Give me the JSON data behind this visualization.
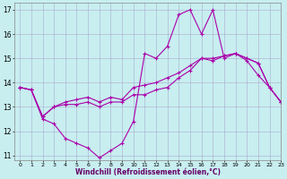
{
  "xlabel": "Windchill (Refroidissement éolien,°C)",
  "bg_color": "#c8eef0",
  "grid_color": "#aaaacc",
  "line_color1": "#aa00aa",
  "line_color2": "#aa00aa",
  "line_color3": "#aa00aa",
  "xlim": [
    -0.5,
    23
  ],
  "ylim": [
    10.8,
    17.3
  ],
  "yticks": [
    11,
    12,
    13,
    14,
    15,
    16,
    17
  ],
  "xticks": [
    0,
    1,
    2,
    3,
    4,
    5,
    6,
    7,
    8,
    9,
    10,
    11,
    12,
    13,
    14,
    15,
    16,
    17,
    18,
    19,
    20,
    21,
    22,
    23
  ],
  "line1_x": [
    0,
    1,
    2,
    3,
    4,
    5,
    6,
    7,
    8,
    9,
    10,
    11,
    12,
    13,
    14,
    15,
    16,
    17,
    18,
    19,
    20,
    21,
    22,
    23
  ],
  "line1_y": [
    13.8,
    13.7,
    12.5,
    12.3,
    11.7,
    11.5,
    11.3,
    10.9,
    11.2,
    11.5,
    12.4,
    15.2,
    15.0,
    15.5,
    16.8,
    17.0,
    16.0,
    17.0,
    15.0,
    15.2,
    14.9,
    14.3,
    13.8,
    13.2
  ],
  "line2_x": [
    0,
    1,
    2,
    3,
    4,
    5,
    6,
    7,
    8,
    9,
    10,
    11,
    12,
    13,
    14,
    15,
    16,
    17,
    18,
    19,
    20,
    21,
    22,
    23
  ],
  "line2_y": [
    13.8,
    13.7,
    12.6,
    13.0,
    13.1,
    13.1,
    13.2,
    13.0,
    13.2,
    13.2,
    13.5,
    13.5,
    13.7,
    13.8,
    14.2,
    14.5,
    15.0,
    14.9,
    15.1,
    15.2,
    15.0,
    14.8,
    13.8,
    13.2
  ],
  "line3_x": [
    0,
    1,
    2,
    3,
    4,
    5,
    6,
    7,
    8,
    9,
    10,
    11,
    12,
    13,
    14,
    15,
    16,
    17,
    18,
    19,
    20,
    21,
    22,
    23
  ],
  "line3_y": [
    13.8,
    13.7,
    12.6,
    13.0,
    13.2,
    13.3,
    13.4,
    13.2,
    13.4,
    13.3,
    13.8,
    13.9,
    14.0,
    14.2,
    14.4,
    14.7,
    15.0,
    15.0,
    15.1,
    15.2,
    15.0,
    14.8,
    13.8,
    13.2
  ]
}
